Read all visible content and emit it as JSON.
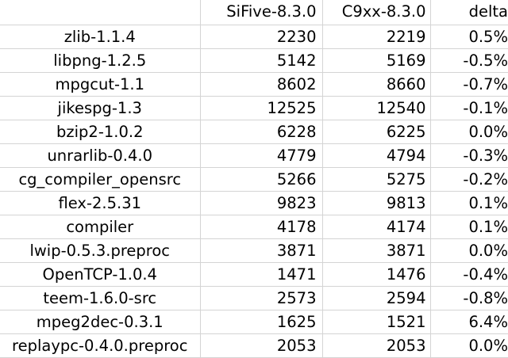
{
  "header": {
    "name": "",
    "col1": "SiFive-8.3.0",
    "col2": "C9xx-8.3.0",
    "col3": "delta"
  },
  "rows": [
    {
      "name": "zlib-1.1.4",
      "sifive": "2230",
      "c9xx": "2219",
      "delta": "0.5%"
    },
    {
      "name": "libpng-1.2.5",
      "sifive": "5142",
      "c9xx": "5169",
      "delta": "-0.5%"
    },
    {
      "name": "mpgcut-1.1",
      "sifive": "8602",
      "c9xx": "8660",
      "delta": "-0.7%"
    },
    {
      "name": "jikespg-1.3",
      "sifive": "12525",
      "c9xx": "12540",
      "delta": "-0.1%"
    },
    {
      "name": "bzip2-1.0.2",
      "sifive": "6228",
      "c9xx": "6225",
      "delta": "0.0%"
    },
    {
      "name": "unrarlib-0.4.0",
      "sifive": "4779",
      "c9xx": "4794",
      "delta": "-0.3%"
    },
    {
      "name": "cg_compiler_opensrc",
      "sifive": "5266",
      "c9xx": "5275",
      "delta": "-0.2%"
    },
    {
      "name": "flex-2.5.31",
      "sifive": "9823",
      "c9xx": "9813",
      "delta": "0.1%"
    },
    {
      "name": "compiler",
      "sifive": "4178",
      "c9xx": "4174",
      "delta": "0.1%"
    },
    {
      "name": "lwip-0.5.3.preproc",
      "sifive": "3871",
      "c9xx": "3871",
      "delta": "0.0%"
    },
    {
      "name": "OpenTCP-1.0.4",
      "sifive": "1471",
      "c9xx": "1476",
      "delta": "-0.4%"
    },
    {
      "name": "teem-1.6.0-src",
      "sifive": "2573",
      "c9xx": "2594",
      "delta": "-0.8%"
    },
    {
      "name": "mpeg2dec-0.3.1",
      "sifive": "1625",
      "c9xx": "1521",
      "delta": "6.4%"
    },
    {
      "name": "replaypc-0.4.0.preproc",
      "sifive": "2053",
      "c9xx": "2053",
      "delta": "0.0%"
    }
  ]
}
